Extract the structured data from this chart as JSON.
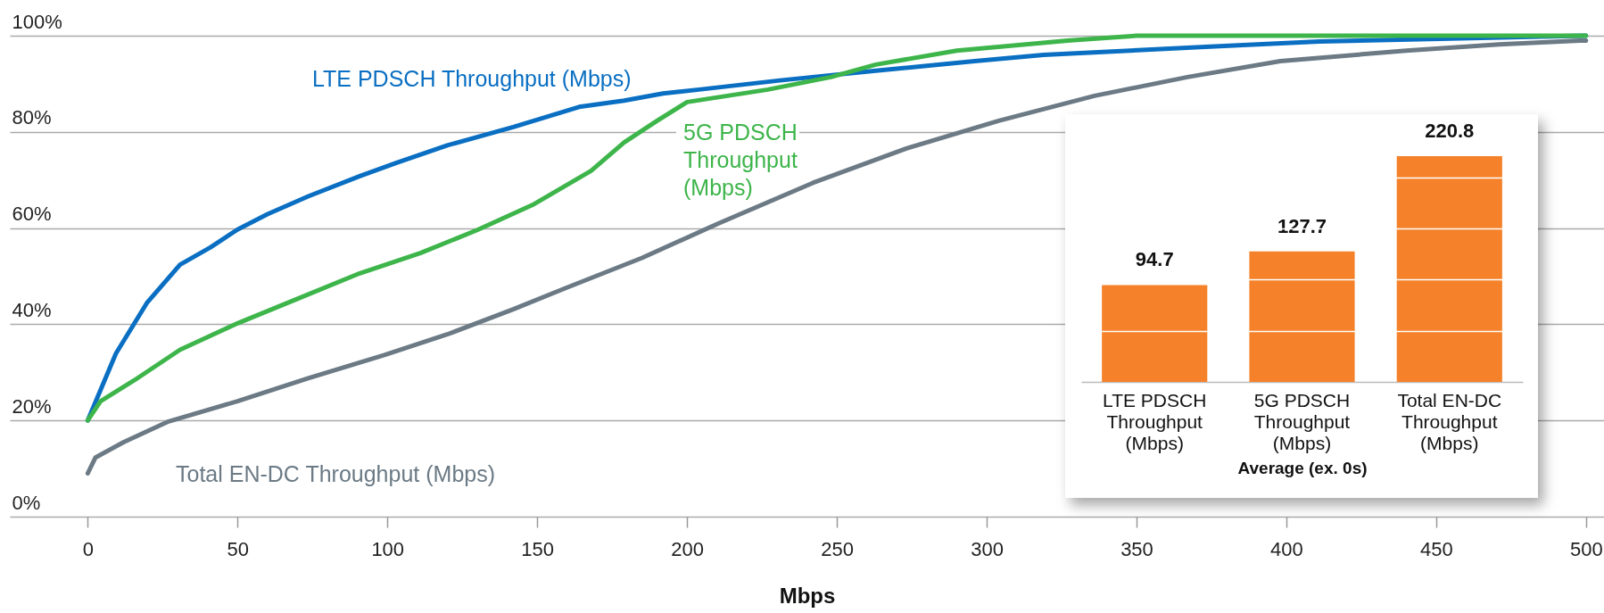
{
  "chart_data": [
    {
      "type": "line",
      "xlabel": "Mbps",
      "xlim": [
        -26,
        506
      ],
      "xticks": [
        0,
        50,
        100,
        150,
        200,
        250,
        300,
        350,
        400,
        450,
        500
      ],
      "ylim": [
        0,
        100
      ],
      "yticks": [
        {
          "value": 0,
          "label": "0%"
        },
        {
          "value": 20,
          "label": "20%"
        },
        {
          "value": 40,
          "label": "40%"
        },
        {
          "value": 60,
          "label": "60%"
        },
        {
          "value": 80,
          "label": "80%"
        },
        {
          "value": 100,
          "label": "100%"
        }
      ],
      "grid": "y",
      "legend": false,
      "line_style": "solid",
      "marker": "none",
      "series": [
        {
          "name": "LTE PDSCH Throughput (Mbps)",
          "color": "#0a6fc2",
          "x": [
            0,
            9.4,
            19.7,
            30.8,
            41,
            50,
            60,
            73.6,
            90.8,
            102.7,
            120,
            142,
            164,
            179,
            192,
            204,
            231,
            263,
            296,
            319,
            373,
            411,
            492,
            500
          ],
          "values": [
            20,
            33.9,
            44.4,
            52.4,
            56,
            59.7,
            62.9,
            66.6,
            70.8,
            73.5,
            77.2,
            81,
            85.2,
            86.5,
            88,
            88.8,
            90.7,
            92.7,
            94.7,
            96,
            97.7,
            98.8,
            99.9,
            100
          ]
        },
        {
          "name": "5G PDSCH Throughput (Mbps)",
          "color": "#3db54a",
          "x": [
            0,
            4.3,
            15.4,
            30.8,
            50,
            70,
            90.8,
            111,
            130,
            149,
            168,
            179,
            190,
            200,
            227,
            248,
            263,
            290,
            327,
            350,
            500
          ],
          "values": [
            20,
            24,
            28.3,
            34.7,
            40.2,
            45.3,
            50.6,
            54.8,
            59.6,
            65,
            71.9,
            77.8,
            82.3,
            86.2,
            88.8,
            91.4,
            94,
            96.9,
            99,
            100,
            100
          ]
        },
        {
          "name": "Total EN-DC Throughput (Mbps)",
          "color": "#6b7a85",
          "x": [
            0,
            2.6,
            12,
            27,
            50,
            73.6,
            99,
            120,
            142,
            159,
            185,
            210.6,
            242,
            273,
            304,
            336,
            367,
            398,
            440,
            471,
            498,
            500
          ],
          "values": [
            9,
            12.3,
            15.5,
            19.8,
            24,
            28.8,
            33.6,
            37.9,
            43.1,
            47.4,
            53.8,
            61,
            69.4,
            76.5,
            82.3,
            87.5,
            91.4,
            94.7,
            96.9,
            98.2,
            99,
            99
          ]
        }
      ]
    },
    {
      "type": "bar",
      "xlabel": "Average (ex. 0s)",
      "categories": [
        "LTE PDSCH Throughput (Mbps)",
        "5G PDSCH Throughput (Mbps)",
        "Total EN-DC Throughput (Mbps)"
      ],
      "values": [
        94.7,
        127.7,
        220.8
      ],
      "color": "#f5822a",
      "yticks": [
        {
          "value": 50,
          "label": null
        },
        {
          "value": 100,
          "label": null
        },
        {
          "value": 150,
          "label": null
        },
        {
          "value": 200,
          "label": null
        }
      ],
      "grid": "y",
      "tick_labels": "x",
      "data_labels": true
    }
  ]
}
